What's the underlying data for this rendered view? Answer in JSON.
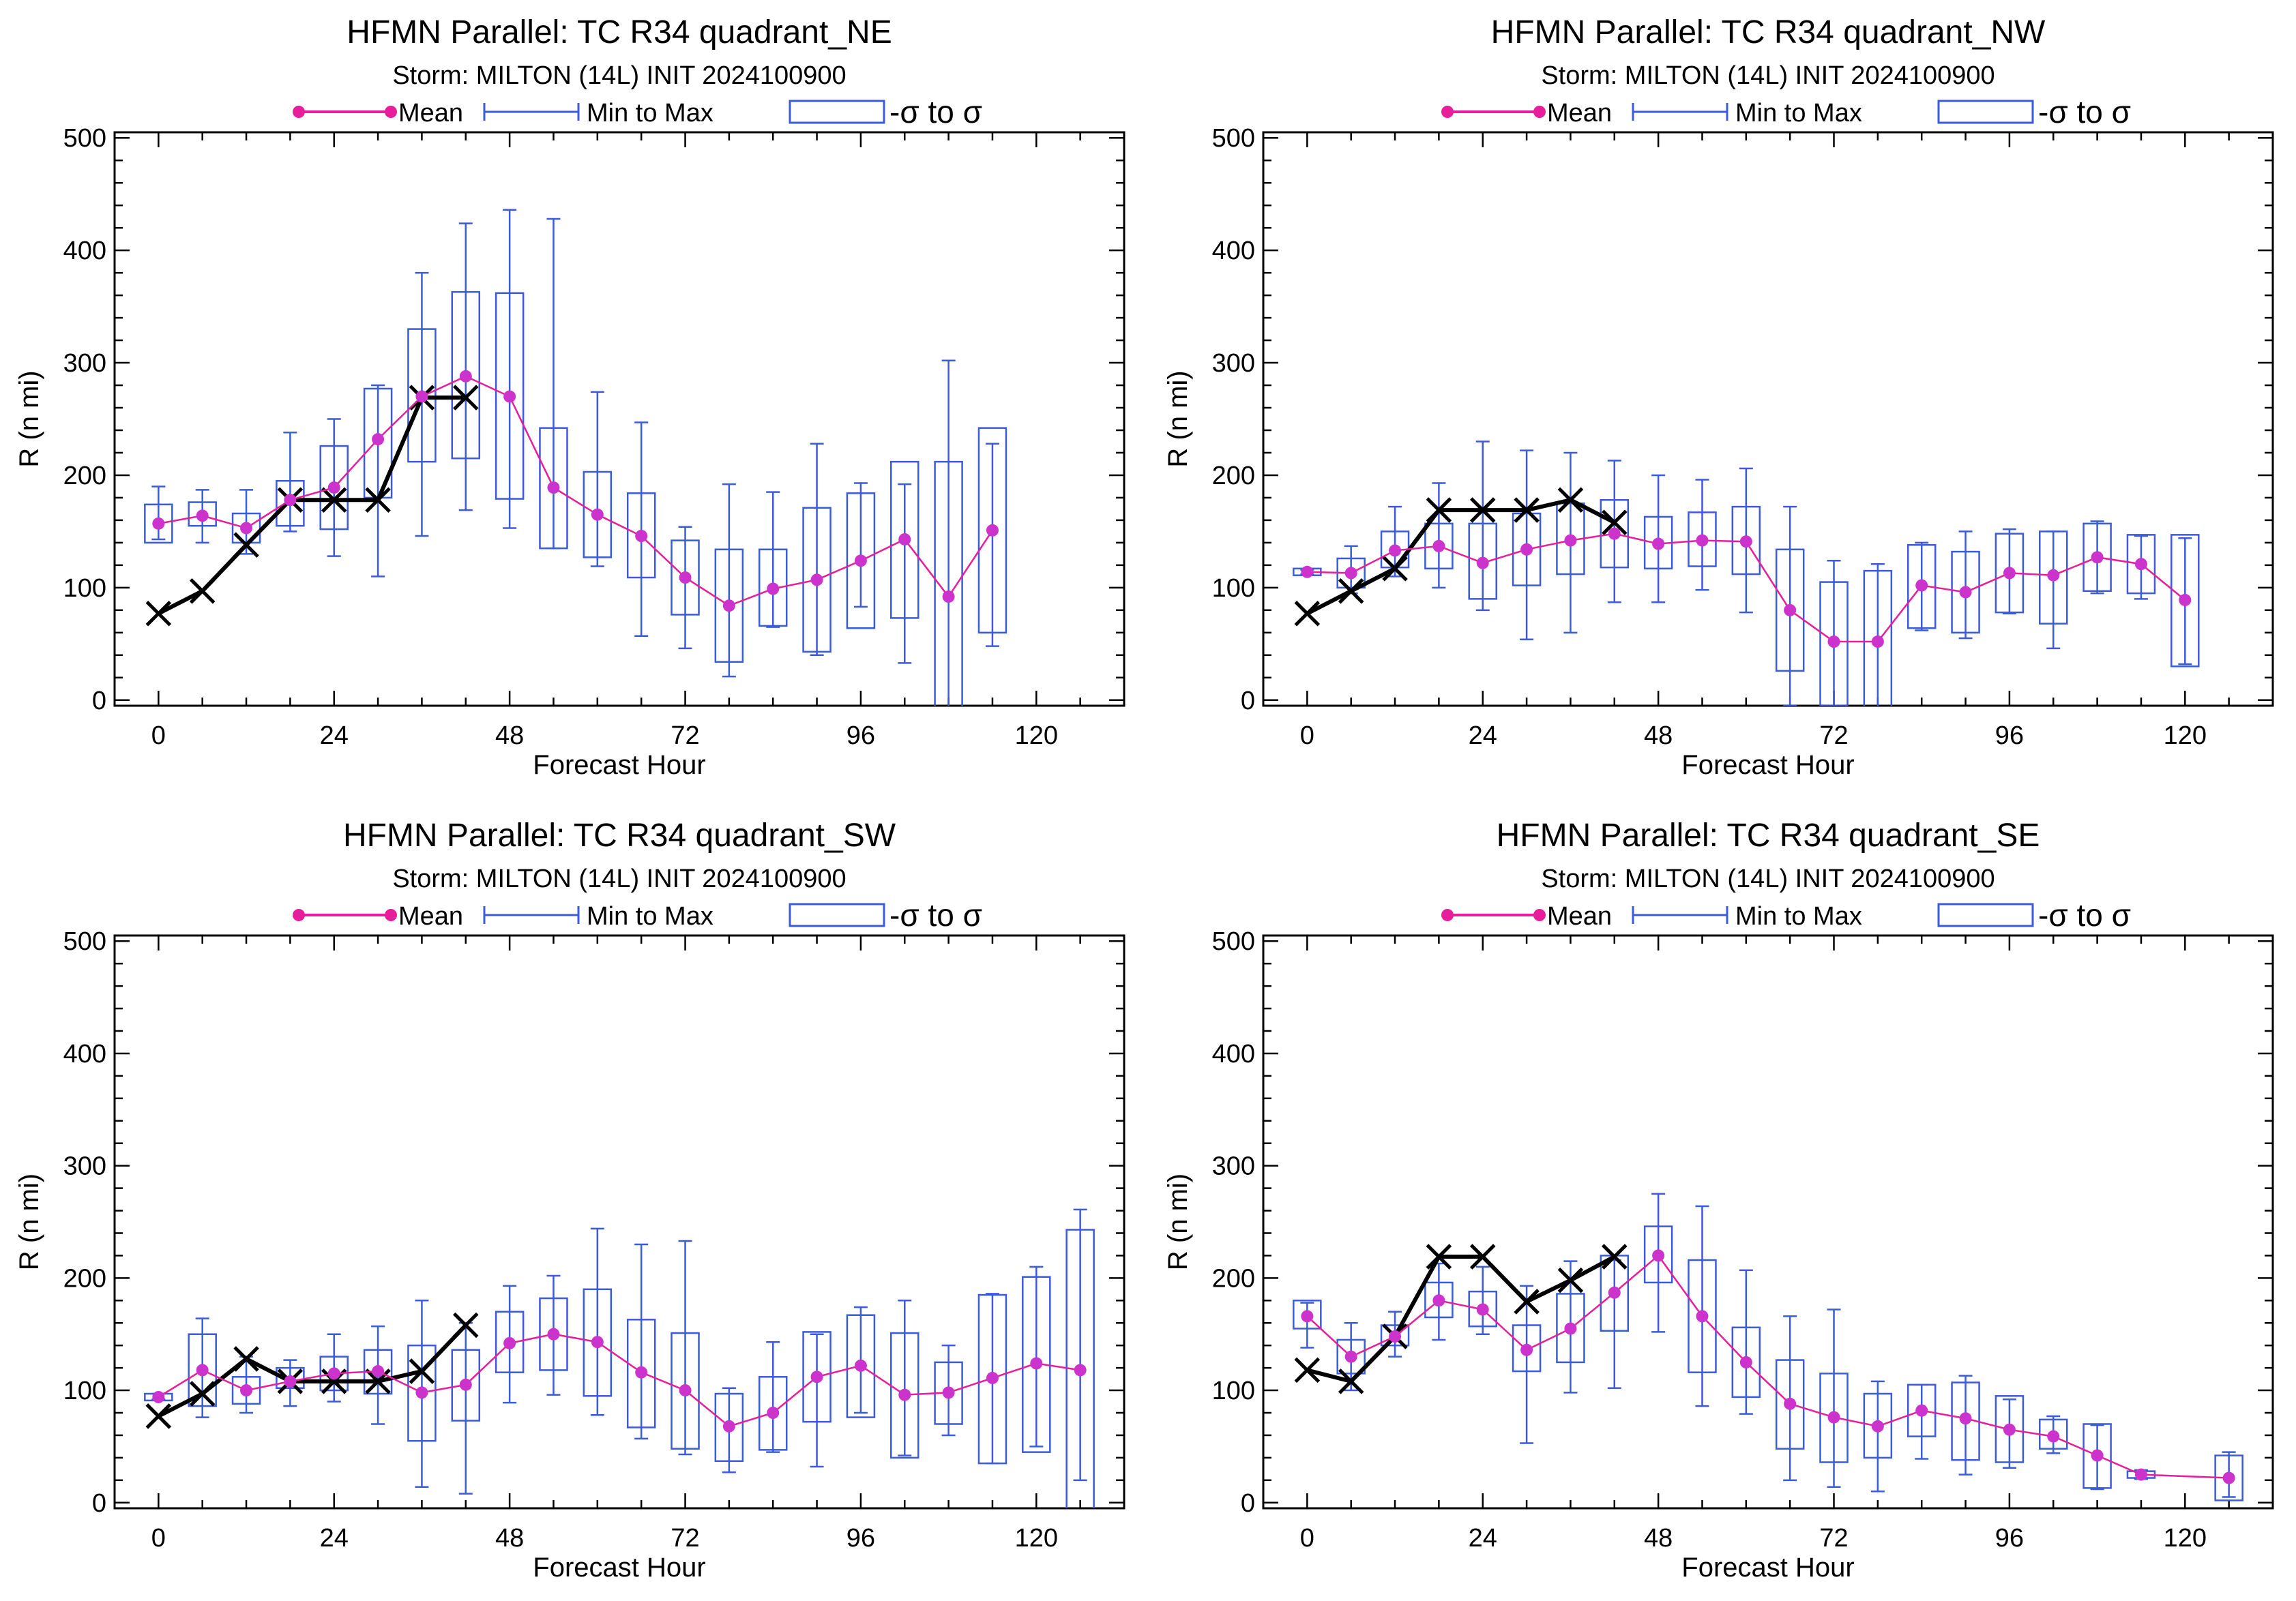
{
  "legend": {
    "mean_label": "Mean",
    "minmax_label": "Min to Max",
    "sigma_label": "-σ to σ"
  },
  "colors": {
    "mean": "#e61e9b",
    "mean_dot": "#cc33cc",
    "box": "#3b5bdb",
    "obs": "#000000"
  },
  "chart_data": [
    {
      "type": "box-line",
      "title": "HFMN Parallel: TC  R34 quadrant_NE",
      "subtitle": "Storm: MILTON (14L) INIT 2024100900",
      "xlabel": "Forecast Hour",
      "ylabel": "R (n mi)",
      "xlim": [
        -6,
        132
      ],
      "ylim": [
        -5,
        505
      ],
      "xticks": [
        0,
        24,
        48,
        72,
        96,
        120
      ],
      "yticks": [
        0,
        100,
        200,
        300,
        400,
        500
      ],
      "mean": [
        [
          0,
          157
        ],
        [
          6,
          164
        ],
        [
          12,
          153
        ],
        [
          18,
          178
        ],
        [
          24,
          189
        ],
        [
          30,
          232
        ],
        [
          36,
          270
        ],
        [
          42,
          288
        ],
        [
          48,
          270
        ],
        [
          54,
          189
        ],
        [
          60,
          165
        ],
        [
          66,
          146
        ],
        [
          72,
          109
        ],
        [
          78,
          84
        ],
        [
          84,
          99
        ],
        [
          90,
          107
        ],
        [
          96,
          124
        ],
        [
          102,
          143
        ],
        [
          108,
          92
        ],
        [
          114,
          151
        ]
      ],
      "sigma": [
        [
          0,
          140,
          174
        ],
        [
          6,
          155,
          176
        ],
        [
          12,
          140,
          166
        ],
        [
          18,
          155,
          195
        ],
        [
          24,
          152,
          226
        ],
        [
          30,
          180,
          277
        ],
        [
          36,
          212,
          330
        ],
        [
          42,
          215,
          363
        ],
        [
          48,
          179,
          362
        ],
        [
          54,
          135,
          242
        ],
        [
          60,
          127,
          203
        ],
        [
          66,
          109,
          184
        ],
        [
          72,
          76,
          142
        ],
        [
          78,
          34,
          134
        ],
        [
          84,
          66,
          134
        ],
        [
          90,
          43,
          171
        ],
        [
          96,
          64,
          184
        ],
        [
          102,
          73,
          212
        ],
        [
          108,
          -30,
          212
        ],
        [
          114,
          60,
          242
        ]
      ],
      "range": [
        [
          0,
          143,
          190
        ],
        [
          6,
          140,
          187
        ],
        [
          12,
          130,
          187
        ],
        [
          18,
          150,
          238
        ],
        [
          24,
          128,
          250
        ],
        [
          30,
          110,
          280
        ],
        [
          36,
          146,
          380
        ],
        [
          42,
          169,
          424
        ],
        [
          48,
          153,
          436
        ],
        [
          54,
          135,
          428
        ],
        [
          60,
          119,
          274
        ],
        [
          66,
          57,
          247
        ],
        [
          72,
          46,
          154
        ],
        [
          78,
          21,
          192
        ],
        [
          84,
          65,
          185
        ],
        [
          90,
          40,
          228
        ],
        [
          96,
          83,
          193
        ],
        [
          102,
          33,
          192
        ],
        [
          108,
          -30,
          302
        ],
        [
          114,
          48,
          228
        ]
      ],
      "observed": [
        [
          0,
          77
        ],
        [
          6,
          97
        ],
        [
          12,
          138
        ],
        [
          18,
          178
        ],
        [
          24,
          178
        ],
        [
          30,
          178
        ],
        [
          36,
          269
        ],
        [
          42,
          269
        ]
      ]
    },
    {
      "type": "box-line",
      "title": "HFMN Parallel: TC  R34 quadrant_NW",
      "subtitle": "Storm: MILTON (14L) INIT 2024100900",
      "xlabel": "Forecast Hour",
      "ylabel": "R (n mi)",
      "xlim": [
        -6,
        132
      ],
      "ylim": [
        -5,
        505
      ],
      "xticks": [
        0,
        24,
        48,
        72,
        96,
        120
      ],
      "yticks": [
        0,
        100,
        200,
        300,
        400,
        500
      ],
      "mean": [
        [
          0,
          114
        ],
        [
          6,
          113
        ],
        [
          12,
          133
        ],
        [
          18,
          137
        ],
        [
          24,
          122
        ],
        [
          30,
          134
        ],
        [
          36,
          142
        ],
        [
          42,
          148
        ],
        [
          48,
          139
        ],
        [
          54,
          142
        ],
        [
          60,
          141
        ],
        [
          66,
          80
        ],
        [
          72,
          52
        ],
        [
          78,
          52
        ],
        [
          84,
          102
        ],
        [
          90,
          96
        ],
        [
          96,
          113
        ],
        [
          102,
          111
        ],
        [
          108,
          127
        ],
        [
          114,
          121
        ],
        [
          120,
          89
        ]
      ],
      "sigma": [
        [
          0,
          111,
          117
        ],
        [
          6,
          100,
          126
        ],
        [
          12,
          118,
          150
        ],
        [
          18,
          117,
          157
        ],
        [
          24,
          90,
          157
        ],
        [
          30,
          102,
          166
        ],
        [
          36,
          112,
          175
        ],
        [
          42,
          118,
          178
        ],
        [
          48,
          117,
          163
        ],
        [
          54,
          119,
          167
        ],
        [
          60,
          112,
          172
        ],
        [
          66,
          26,
          134
        ],
        [
          72,
          -5,
          105
        ],
        [
          78,
          -12,
          115
        ],
        [
          84,
          64,
          138
        ],
        [
          90,
          60,
          132
        ],
        [
          96,
          78,
          148
        ],
        [
          102,
          68,
          150
        ],
        [
          108,
          97,
          157
        ],
        [
          114,
          95,
          147
        ],
        [
          120,
          30,
          147
        ]
      ],
      "range": [
        [
          0,
          112,
          116
        ],
        [
          6,
          95,
          137
        ],
        [
          12,
          110,
          172
        ],
        [
          18,
          100,
          193
        ],
        [
          24,
          80,
          230
        ],
        [
          30,
          54,
          222
        ],
        [
          36,
          60,
          220
        ],
        [
          42,
          87,
          213
        ],
        [
          48,
          87,
          200
        ],
        [
          54,
          98,
          196
        ],
        [
          60,
          78,
          206
        ],
        [
          66,
          -5,
          172
        ],
        [
          72,
          -5,
          124
        ],
        [
          78,
          -10,
          121
        ],
        [
          84,
          62,
          140
        ],
        [
          90,
          55,
          150
        ],
        [
          96,
          77,
          152
        ],
        [
          102,
          46,
          150
        ],
        [
          108,
          95,
          159
        ],
        [
          114,
          90,
          146
        ],
        [
          120,
          32,
          144
        ]
      ],
      "observed": [
        [
          0,
          77
        ],
        [
          6,
          97
        ],
        [
          12,
          117
        ],
        [
          18,
          169
        ],
        [
          24,
          169
        ],
        [
          30,
          169
        ],
        [
          36,
          178
        ],
        [
          42,
          158
        ]
      ]
    },
    {
      "type": "box-line",
      "title": "HFMN Parallel: TC  R34 quadrant_SW",
      "subtitle": "Storm: MILTON (14L) INIT 2024100900",
      "xlabel": "Forecast Hour",
      "ylabel": "R (n mi)",
      "xlim": [
        -6,
        132
      ],
      "ylim": [
        -5,
        505
      ],
      "xticks": [
        0,
        24,
        48,
        72,
        96,
        120
      ],
      "yticks": [
        0,
        100,
        200,
        300,
        400,
        500
      ],
      "mean": [
        [
          0,
          94
        ],
        [
          6,
          118
        ],
        [
          12,
          100
        ],
        [
          18,
          108
        ],
        [
          24,
          115
        ],
        [
          30,
          117
        ],
        [
          36,
          98
        ],
        [
          42,
          105
        ],
        [
          48,
          142
        ],
        [
          54,
          150
        ],
        [
          60,
          143
        ],
        [
          66,
          116
        ],
        [
          72,
          100
        ],
        [
          78,
          68
        ],
        [
          84,
          80
        ],
        [
          90,
          112
        ],
        [
          96,
          122
        ],
        [
          102,
          96
        ],
        [
          108,
          98
        ],
        [
          114,
          111
        ],
        [
          120,
          124
        ],
        [
          126,
          118
        ]
      ],
      "sigma": [
        [
          0,
          91,
          97
        ],
        [
          6,
          86,
          150
        ],
        [
          12,
          88,
          112
        ],
        [
          18,
          102,
          120
        ],
        [
          24,
          100,
          130
        ],
        [
          30,
          97,
          136
        ],
        [
          36,
          55,
          140
        ],
        [
          42,
          73,
          136
        ],
        [
          48,
          116,
          170
        ],
        [
          54,
          118,
          182
        ],
        [
          60,
          95,
          190
        ],
        [
          66,
          67,
          163
        ],
        [
          72,
          48,
          151
        ],
        [
          78,
          37,
          97
        ],
        [
          84,
          47,
          112
        ],
        [
          90,
          72,
          152
        ],
        [
          96,
          76,
          167
        ],
        [
          102,
          40,
          151
        ],
        [
          108,
          70,
          125
        ],
        [
          114,
          35,
          185
        ],
        [
          120,
          45,
          201
        ],
        [
          126,
          -12,
          243
        ]
      ],
      "range": [
        [
          0,
          92,
          97
        ],
        [
          6,
          76,
          164
        ],
        [
          12,
          80,
          130
        ],
        [
          18,
          86,
          127
        ],
        [
          24,
          90,
          150
        ],
        [
          30,
          70,
          157
        ],
        [
          36,
          14,
          180
        ],
        [
          42,
          8,
          160
        ],
        [
          48,
          89,
          193
        ],
        [
          54,
          96,
          202
        ],
        [
          60,
          78,
          244
        ],
        [
          66,
          57,
          230
        ],
        [
          72,
          43,
          233
        ],
        [
          78,
          27,
          102
        ],
        [
          84,
          45,
          143
        ],
        [
          90,
          32,
          150
        ],
        [
          96,
          80,
          174
        ],
        [
          102,
          42,
          180
        ],
        [
          108,
          60,
          140
        ],
        [
          114,
          35,
          186
        ],
        [
          120,
          50,
          210
        ],
        [
          126,
          20,
          261
        ]
      ],
      "observed": [
        [
          0,
          77
        ],
        [
          6,
          97
        ],
        [
          12,
          128
        ],
        [
          18,
          108
        ],
        [
          24,
          108
        ],
        [
          30,
          108
        ],
        [
          36,
          117
        ],
        [
          42,
          158
        ]
      ]
    },
    {
      "type": "box-line",
      "title": "HFMN Parallel: TC  R34 quadrant_SE",
      "subtitle": "Storm: MILTON (14L) INIT 2024100900",
      "xlabel": "Forecast Hour",
      "ylabel": "R (n mi)",
      "xlim": [
        -6,
        132
      ],
      "ylim": [
        -5,
        505
      ],
      "xticks": [
        0,
        24,
        48,
        72,
        96,
        120
      ],
      "yticks": [
        0,
        100,
        200,
        300,
        400,
        500
      ],
      "mean": [
        [
          0,
          166
        ],
        [
          6,
          130
        ],
        [
          12,
          148
        ],
        [
          18,
          180
        ],
        [
          24,
          172
        ],
        [
          30,
          136
        ],
        [
          36,
          155
        ],
        [
          42,
          187
        ],
        [
          48,
          220
        ],
        [
          54,
          166
        ],
        [
          60,
          125
        ],
        [
          66,
          88
        ],
        [
          72,
          76
        ],
        [
          78,
          68
        ],
        [
          84,
          82
        ],
        [
          90,
          75
        ],
        [
          96,
          65
        ],
        [
          102,
          59
        ],
        [
          108,
          42
        ],
        [
          114,
          25
        ],
        [
          126,
          22
        ]
      ],
      "sigma": [
        [
          0,
          155,
          180
        ],
        [
          6,
          115,
          145
        ],
        [
          12,
          140,
          158
        ],
        [
          18,
          165,
          196
        ],
        [
          24,
          157,
          188
        ],
        [
          30,
          117,
          158
        ],
        [
          36,
          125,
          186
        ],
        [
          42,
          153,
          220
        ],
        [
          48,
          196,
          246
        ],
        [
          54,
          116,
          216
        ],
        [
          60,
          94,
          156
        ],
        [
          66,
          48,
          127
        ],
        [
          72,
          36,
          115
        ],
        [
          78,
          40,
          97
        ],
        [
          84,
          59,
          105
        ],
        [
          90,
          38,
          107
        ],
        [
          96,
          36,
          95
        ],
        [
          102,
          48,
          74
        ],
        [
          108,
          13,
          70
        ],
        [
          114,
          22,
          28
        ],
        [
          126,
          2,
          42
        ]
      ],
      "range": [
        [
          0,
          138,
          178
        ],
        [
          6,
          100,
          160
        ],
        [
          12,
          130,
          170
        ],
        [
          18,
          145,
          213
        ],
        [
          24,
          150,
          210
        ],
        [
          30,
          53,
          193
        ],
        [
          36,
          98,
          215
        ],
        [
          42,
          102,
          216
        ],
        [
          48,
          152,
          275
        ],
        [
          54,
          86,
          264
        ],
        [
          60,
          79,
          207
        ],
        [
          66,
          20,
          166
        ],
        [
          72,
          14,
          172
        ],
        [
          78,
          10,
          108
        ],
        [
          84,
          39,
          105
        ],
        [
          90,
          25,
          113
        ],
        [
          96,
          31,
          92
        ],
        [
          102,
          44,
          77
        ],
        [
          108,
          12,
          69
        ],
        [
          114,
          21,
          29
        ],
        [
          126,
          5,
          45
        ]
      ],
      "observed": [
        [
          0,
          118
        ],
        [
          6,
          108
        ],
        [
          12,
          148
        ],
        [
          18,
          219
        ],
        [
          24,
          219
        ],
        [
          30,
          179
        ],
        [
          36,
          198
        ],
        [
          42,
          219
        ]
      ]
    }
  ]
}
